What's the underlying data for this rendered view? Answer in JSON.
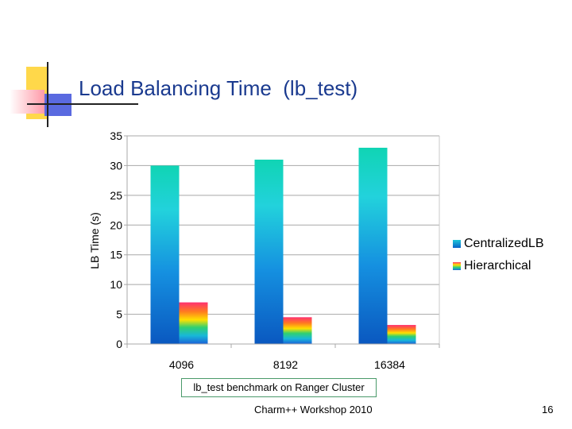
{
  "slide": {
    "title": "Load Balancing Time  (lb_test)",
    "caption": "lb_test benchmark on Ranger Cluster",
    "footer": "Charm++ Workshop 2010",
    "page_number": "16"
  },
  "chart_data": {
    "type": "bar",
    "title": "",
    "xlabel": "",
    "ylabel": "LB Time (s)",
    "ylim": [
      0,
      35
    ],
    "yticks": [
      0,
      5,
      10,
      15,
      20,
      25,
      30,
      35
    ],
    "grid": true,
    "legend_position": "right",
    "categories": [
      "4096",
      "8192",
      "16384"
    ],
    "series": [
      {
        "name": "CentralizedLB",
        "values": [
          30,
          31,
          33
        ]
      },
      {
        "name": "Hierarchical",
        "values": [
          7,
          4.5,
          3.2
        ]
      }
    ]
  }
}
